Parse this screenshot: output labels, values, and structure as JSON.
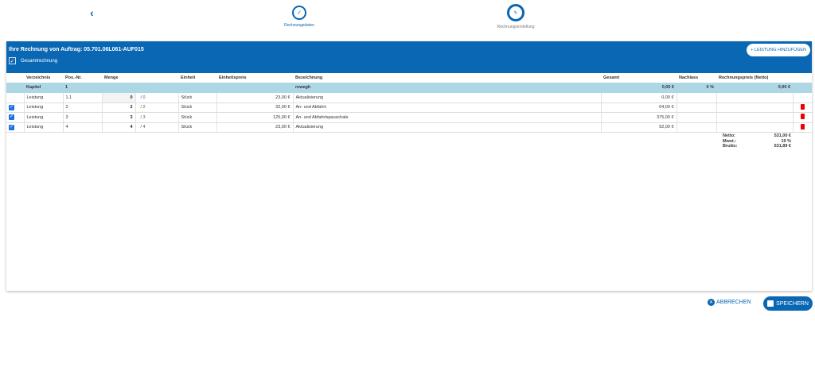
{
  "nav": {
    "back_icon": "chevron-left-icon"
  },
  "steps": [
    {
      "label": "Rechnungsdaten",
      "icon": "check-icon"
    },
    {
      "label": "Rechnungserstellung",
      "icon": "pencil-icon"
    }
  ],
  "header": {
    "title": "Ihre Rechnung von Auftrag: 05.701.06L061-AUF015",
    "gesamt_label": "Gesamtrechnung",
    "gesamt_checked": true,
    "add_button": "+ LEISTUNG HINZUFÜGEN"
  },
  "table": {
    "columns": [
      "Verzeichnis",
      "Pos.-Nr.",
      "Menge",
      "Einheit",
      "Einheitspreis",
      "Bezeichnung",
      "Gesamt",
      "Nachlass",
      "Rechnungspreis (Netto)"
    ],
    "chapter": {
      "verzeichnis": "Kapitel",
      "pos": "1",
      "bezeichnung": "rewegh",
      "gesamt": "0,00 €",
      "nachlass": "0 %",
      "netto": "0,00 €"
    },
    "rows": [
      {
        "checked": false,
        "verzeichnis": "Leistung",
        "pos": "1.1",
        "menge": "0",
        "max": "/ 0",
        "einheit": "Stück",
        "preis": "23,00 €",
        "bezeichnung": "Aktualisierung",
        "gesamt": "0,00 €",
        "trash": false
      },
      {
        "checked": true,
        "verzeichnis": "Leistung",
        "pos": "2",
        "menge": "2",
        "max": "/ 2",
        "einheit": "Stück",
        "preis": "32,00 €",
        "bezeichnung": "An- und Abfahrt",
        "gesamt": "64,00 €",
        "trash": true
      },
      {
        "checked": true,
        "verzeichnis": "Leistung",
        "pos": "3",
        "menge": "3",
        "max": "/ 3",
        "einheit": "Stück",
        "preis": "125,00 €",
        "bezeichnung": "An- und Abfahrtspauschale",
        "gesamt": "375,00 €",
        "trash": true
      },
      {
        "checked": true,
        "verzeichnis": "Leistung",
        "pos": "4",
        "menge": "4",
        "max": "/ 4",
        "einheit": "Stück",
        "preis": "23,00 €",
        "bezeichnung": "Aktualisierung",
        "gesamt": "92,00 €",
        "trash": true
      }
    ]
  },
  "totals": {
    "netto_label": "Netto:",
    "netto": "531,00 €",
    "mwst_label": "Mwst.:",
    "mwst": "19 %",
    "brutto_label": "Brutto:",
    "brutto": "631,89 €"
  },
  "footer": {
    "cancel": "ABBRECHEN",
    "save": "SPEICHERN"
  },
  "colors": {
    "primary": "#0a67b3",
    "chapter_bg": "#aed7e6",
    "trash": "#e00000"
  }
}
